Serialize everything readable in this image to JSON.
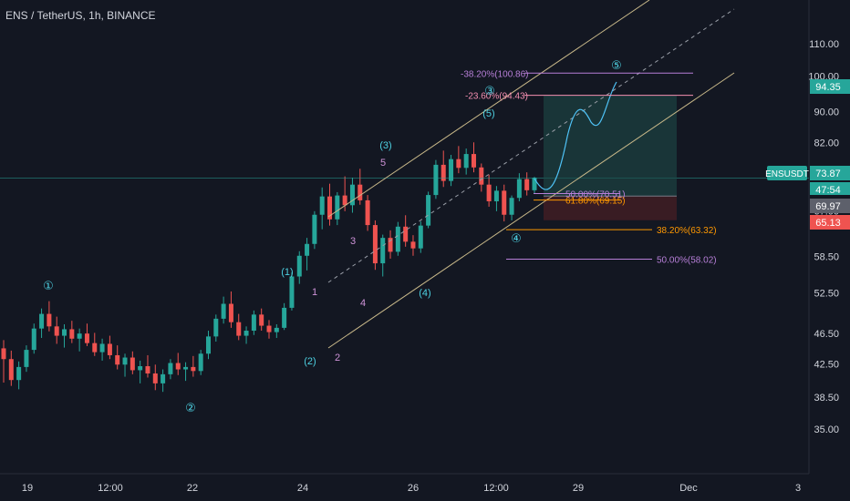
{
  "header": {
    "title": "ENS / TetherUS, 1h, BINANCE"
  },
  "colors": {
    "background": "#131722",
    "up": "#26a69a",
    "down": "#ef5350",
    "axis_text": "#d1d4dc",
    "channel": "#c9b98a",
    "fib_purple": "#b77fd8",
    "fib_pink": "#f48fb1",
    "fib_orange": "#ff9800",
    "wave_cyan": "#4dd0e1",
    "wave_purple": "#ce93d8",
    "target_fill": "#1e4a48",
    "stop_fill": "#4a2024"
  },
  "chart_data": {
    "type": "candlestick",
    "symbol": "ENSUSDT",
    "x_ticks": [
      "19",
      "12:00",
      "22",
      "24",
      "26",
      "12:00",
      "29",
      "Dec",
      "3"
    ],
    "y_ticks": [
      "110.00",
      "100.00",
      "90.00",
      "82.00",
      "74.50",
      "67.00",
      "58.50",
      "52.50",
      "46.50",
      "42.50",
      "38.50",
      "35.00"
    ],
    "y_scale": "log",
    "ylim": [
      31.5,
      122
    ],
    "candles_ohlc_approx": [
      [
        44.5,
        45.6,
        40.2,
        43.1
      ],
      [
        43.1,
        44.2,
        39.8,
        40.5
      ],
      [
        40.5,
        42.8,
        39.4,
        42.1
      ],
      [
        42.1,
        44.9,
        41.5,
        44.3
      ],
      [
        44.3,
        47.9,
        43.8,
        47.2
      ],
      [
        47.2,
        50.1,
        45.9,
        49.3
      ],
      [
        49.3,
        51.2,
        46.8,
        47.5
      ],
      [
        47.5,
        48.9,
        45.1,
        46.2
      ],
      [
        46.2,
        47.8,
        44.6,
        47.1
      ],
      [
        47.1,
        48.3,
        45.2,
        45.8
      ],
      [
        45.8,
        47.2,
        44.1,
        46.5
      ],
      [
        46.5,
        47.9,
        44.8,
        45.2
      ],
      [
        45.2,
        46.6,
        43.5,
        44.0
      ],
      [
        44.0,
        45.8,
        42.9,
        45.1
      ],
      [
        45.1,
        46.2,
        43.1,
        43.6
      ],
      [
        43.6,
        44.9,
        41.8,
        42.4
      ],
      [
        42.4,
        43.8,
        40.9,
        43.3
      ],
      [
        43.3,
        44.1,
        41.2,
        41.7
      ],
      [
        41.7,
        42.9,
        40.1,
        42.2
      ],
      [
        42.2,
        43.6,
        40.8,
        41.3
      ],
      [
        41.3,
        42.4,
        39.3,
        40.1
      ],
      [
        40.1,
        41.8,
        39.1,
        41.2
      ],
      [
        41.2,
        43.1,
        40.6,
        42.6
      ],
      [
        42.6,
        43.9,
        41.1,
        41.8
      ],
      [
        41.8,
        42.7,
        40.4,
        42.1
      ],
      [
        42.1,
        43.5,
        40.9,
        41.6
      ],
      [
        41.6,
        44.3,
        41.1,
        43.8
      ],
      [
        43.8,
        46.9,
        43.1,
        46.1
      ],
      [
        46.1,
        49.2,
        45.4,
        48.6
      ],
      [
        48.6,
        51.9,
        47.9,
        50.8
      ],
      [
        50.8,
        52.7,
        47.3,
        48.1
      ],
      [
        48.1,
        49.3,
        45.6,
        46.2
      ],
      [
        46.2,
        47.5,
        45.1,
        46.9
      ],
      [
        46.9,
        49.8,
        46.3,
        49.2
      ],
      [
        49.2,
        50.1,
        46.9,
        47.6
      ],
      [
        47.6,
        48.4,
        45.8,
        46.7
      ],
      [
        46.7,
        47.8,
        45.9,
        47.3
      ],
      [
        47.3,
        50.9,
        47.0,
        50.2
      ],
      [
        50.2,
        55.8,
        49.8,
        55.1
      ],
      [
        55.1,
        59.4,
        53.9,
        58.6
      ],
      [
        58.6,
        61.8,
        56.1,
        60.7
      ],
      [
        60.7,
        66.9,
        59.8,
        66.2
      ],
      [
        66.2,
        71.8,
        63.4,
        69.9
      ],
      [
        69.9,
        72.6,
        64.1,
        65.3
      ],
      [
        65.3,
        70.8,
        64.2,
        70.1
      ],
      [
        70.1,
        74.2,
        66.9,
        68.1
      ],
      [
        68.1,
        73.9,
        66.6,
        72.4
      ],
      [
        72.4,
        75.9,
        68.2,
        69.1
      ],
      [
        69.1,
        70.2,
        63.1,
        64.2
      ],
      [
        64.2,
        65.1,
        56.2,
        57.3
      ],
      [
        57.3,
        62.4,
        55.1,
        61.8
      ],
      [
        61.8,
        63.2,
        58.1,
        59.3
      ],
      [
        59.3,
        64.8,
        58.6,
        63.9
      ],
      [
        63.9,
        66.1,
        60.2,
        61.1
      ],
      [
        61.1,
        62.3,
        58.6,
        59.9
      ],
      [
        59.9,
        64.9,
        59.1,
        64.1
      ],
      [
        64.1,
        70.9,
        63.6,
        70.2
      ],
      [
        70.2,
        77.9,
        69.4,
        76.8
      ],
      [
        76.8,
        80.1,
        71.9,
        73.2
      ],
      [
        73.2,
        79.1,
        72.1,
        78.1
      ],
      [
        78.1,
        81.2,
        74.9,
        76.1
      ],
      [
        76.1,
        80.6,
        74.6,
        79.3
      ],
      [
        79.3,
        82.1,
        75.1,
        76.2
      ],
      [
        76.2,
        77.1,
        70.9,
        72.4
      ],
      [
        72.4,
        74.6,
        67.8,
        68.9
      ],
      [
        68.9,
        72.1,
        66.9,
        71.1
      ],
      [
        71.1,
        72.4,
        64.9,
        66.2
      ],
      [
        66.2,
        70.1,
        65.1,
        69.6
      ],
      [
        69.6,
        74.9,
        68.9,
        73.6
      ],
      [
        73.6,
        75.1,
        70.1,
        71.2
      ],
      [
        71.2,
        74.1,
        70.4,
        73.9
      ]
    ],
    "fib_levels": [
      {
        "label": "-38.20%(100.86)",
        "value": 100.86
      },
      {
        "label": "-23.60%(94.43)",
        "value": 94.43
      },
      {
        "label": "50.00%(70.51)",
        "value": 70.51
      },
      {
        "label": "61.80%(69.15)",
        "value": 69.15
      },
      {
        "label": "38.20%(63.32)",
        "value": 63.32
      },
      {
        "label": "50.00%(58.02)",
        "value": 58.02
      }
    ],
    "wave_labels": [
      "①",
      "②",
      "(1)",
      "(2)",
      "1",
      "2",
      "3",
      "4",
      "5",
      "(3)",
      "(4)",
      "(5)",
      "③",
      "④",
      "⑤"
    ],
    "price_tags": [
      {
        "label": "94.35",
        "value": 94.35,
        "color": "#26a69a"
      },
      {
        "label": "ENSUSDT",
        "value": 73.87,
        "color": "#26a69a"
      },
      {
        "label": "73.87",
        "value": 73.87,
        "color": "#26a69a"
      },
      {
        "label": "47:54",
        "value": 71.9,
        "color": "#26a69a"
      },
      {
        "label": "69.97",
        "value": 69.97,
        "color": "#5d606b"
      },
      {
        "label": "65.13",
        "value": 65.13,
        "color": "#ef5350"
      }
    ]
  }
}
